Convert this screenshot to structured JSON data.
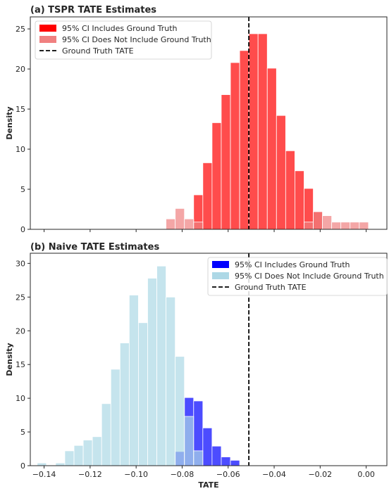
{
  "chart_data": [
    {
      "type": "bar",
      "title": "(a) TSPR TATE Estimates",
      "ylabel": "Density",
      "xlabel": "",
      "xlim": [
        -0.146,
        0.009
      ],
      "ylim": [
        0,
        26.5
      ],
      "yticks": [
        0,
        5,
        10,
        15,
        20,
        25
      ],
      "bin_width": 0.004,
      "legend_position": "top-left",
      "legend": {
        "includes_label": "95% CI Includes Ground Truth",
        "excludes_label": "95% CI Does Not Include Ground Truth",
        "truth_label": "Ground Truth TATE"
      },
      "colors": {
        "includes": "#ff0000",
        "excludes": "#f08080"
      },
      "ground_truth": -0.051,
      "series": [
        {
          "name": "95% CI Includes Ground Truth",
          "bins": [
            {
              "x0": -0.075,
              "x1": -0.071,
              "y": 4.3
            },
            {
              "x0": -0.071,
              "x1": -0.067,
              "y": 8.3
            },
            {
              "x0": -0.067,
              "x1": -0.063,
              "y": 13.3
            },
            {
              "x0": -0.063,
              "x1": -0.059,
              "y": 16.8
            },
            {
              "x0": -0.059,
              "x1": -0.055,
              "y": 20.8
            },
            {
              "x0": -0.055,
              "x1": -0.051,
              "y": 22.3
            },
            {
              "x0": -0.051,
              "x1": -0.047,
              "y": 24.4
            },
            {
              "x0": -0.047,
              "x1": -0.043,
              "y": 24.4
            },
            {
              "x0": -0.043,
              "x1": -0.039,
              "y": 20.1
            },
            {
              "x0": -0.039,
              "x1": -0.035,
              "y": 14.2
            },
            {
              "x0": -0.035,
              "x1": -0.031,
              "y": 9.8
            },
            {
              "x0": -0.031,
              "x1": -0.027,
              "y": 7.3
            },
            {
              "x0": -0.027,
              "x1": -0.023,
              "y": 5.1
            },
            {
              "x0": -0.023,
              "x1": -0.019,
              "y": 2.2
            }
          ]
        },
        {
          "name": "95% CI Does Not Include Ground Truth",
          "bins": [
            {
              "x0": -0.087,
              "x1": -0.083,
              "y": 1.3
            },
            {
              "x0": -0.083,
              "x1": -0.079,
              "y": 2.6
            },
            {
              "x0": -0.079,
              "x1": -0.075,
              "y": 1.3
            },
            {
              "x0": -0.075,
              "x1": -0.071,
              "y": 0.9
            },
            {
              "x0": -0.027,
              "x1": -0.023,
              "y": 0.9
            },
            {
              "x0": -0.023,
              "x1": -0.019,
              "y": 2.2
            },
            {
              "x0": -0.019,
              "x1": -0.015,
              "y": 1.7
            },
            {
              "x0": -0.015,
              "x1": -0.011,
              "y": 0.9
            },
            {
              "x0": -0.011,
              "x1": -0.007,
              "y": 0.9
            },
            {
              "x0": -0.007,
              "x1": -0.003,
              "y": 0.9
            },
            {
              "x0": -0.003,
              "x1": 0.001,
              "y": 0.9
            }
          ]
        }
      ]
    },
    {
      "type": "bar",
      "title": "(b) Naive TATE Estimates",
      "ylabel": "Density",
      "xlabel": "TATE",
      "xlim": [
        -0.146,
        0.009
      ],
      "ylim": [
        0,
        31.5
      ],
      "yticks": [
        0,
        5,
        10,
        15,
        20,
        25,
        30
      ],
      "xticks": [
        -0.14,
        -0.12,
        -0.1,
        -0.08,
        -0.06,
        -0.04,
        -0.02,
        0.0
      ],
      "xtick_labels": [
        "−0.14",
        "−0.12",
        "−0.10",
        "−0.08",
        "−0.06",
        "−0.04",
        "−0.02",
        "0.00"
      ],
      "bin_width": 0.004,
      "legend_position": "top-right",
      "legend": {
        "includes_label": "95% CI Includes Ground Truth",
        "excludes_label": "95% CI Does Not Include Ground Truth",
        "truth_label": "Ground Truth TATE"
      },
      "colors": {
        "includes": "#0000ff",
        "excludes": "#add8e6"
      },
      "ground_truth": -0.051,
      "series": [
        {
          "name": "95% CI Includes Ground Truth",
          "bins": [
            {
              "x0": -0.083,
              "x1": -0.079,
              "y": 2.1
            },
            {
              "x0": -0.079,
              "x1": -0.075,
              "y": 10.1
            },
            {
              "x0": -0.075,
              "x1": -0.071,
              "y": 9.6
            },
            {
              "x0": -0.071,
              "x1": -0.067,
              "y": 5.6
            },
            {
              "x0": -0.067,
              "x1": -0.063,
              "y": 2.9
            },
            {
              "x0": -0.063,
              "x1": -0.059,
              "y": 1.3
            },
            {
              "x0": -0.059,
              "x1": -0.055,
              "y": 0.8
            }
          ]
        },
        {
          "name": "95% CI Does Not Include Ground Truth",
          "bins": [
            {
              "x0": -0.143,
              "x1": -0.139,
              "y": 0.4
            },
            {
              "x0": -0.135,
              "x1": -0.131,
              "y": 0.4
            },
            {
              "x0": -0.131,
              "x1": -0.127,
              "y": 2.2
            },
            {
              "x0": -0.127,
              "x1": -0.123,
              "y": 3.0
            },
            {
              "x0": -0.123,
              "x1": -0.119,
              "y": 3.8
            },
            {
              "x0": -0.119,
              "x1": -0.115,
              "y": 4.3
            },
            {
              "x0": -0.115,
              "x1": -0.111,
              "y": 9.2
            },
            {
              "x0": -0.111,
              "x1": -0.107,
              "y": 14.3
            },
            {
              "x0": -0.107,
              "x1": -0.103,
              "y": 18.2
            },
            {
              "x0": -0.103,
              "x1": -0.099,
              "y": 25.3
            },
            {
              "x0": -0.099,
              "x1": -0.095,
              "y": 21.2
            },
            {
              "x0": -0.095,
              "x1": -0.091,
              "y": 27.8
            },
            {
              "x0": -0.091,
              "x1": -0.087,
              "y": 29.6
            },
            {
              "x0": -0.087,
              "x1": -0.083,
              "y": 25.0
            },
            {
              "x0": -0.083,
              "x1": -0.079,
              "y": 16.2
            },
            {
              "x0": -0.079,
              "x1": -0.075,
              "y": 7.3
            },
            {
              "x0": -0.075,
              "x1": -0.071,
              "y": 2.2
            }
          ]
        }
      ]
    }
  ]
}
